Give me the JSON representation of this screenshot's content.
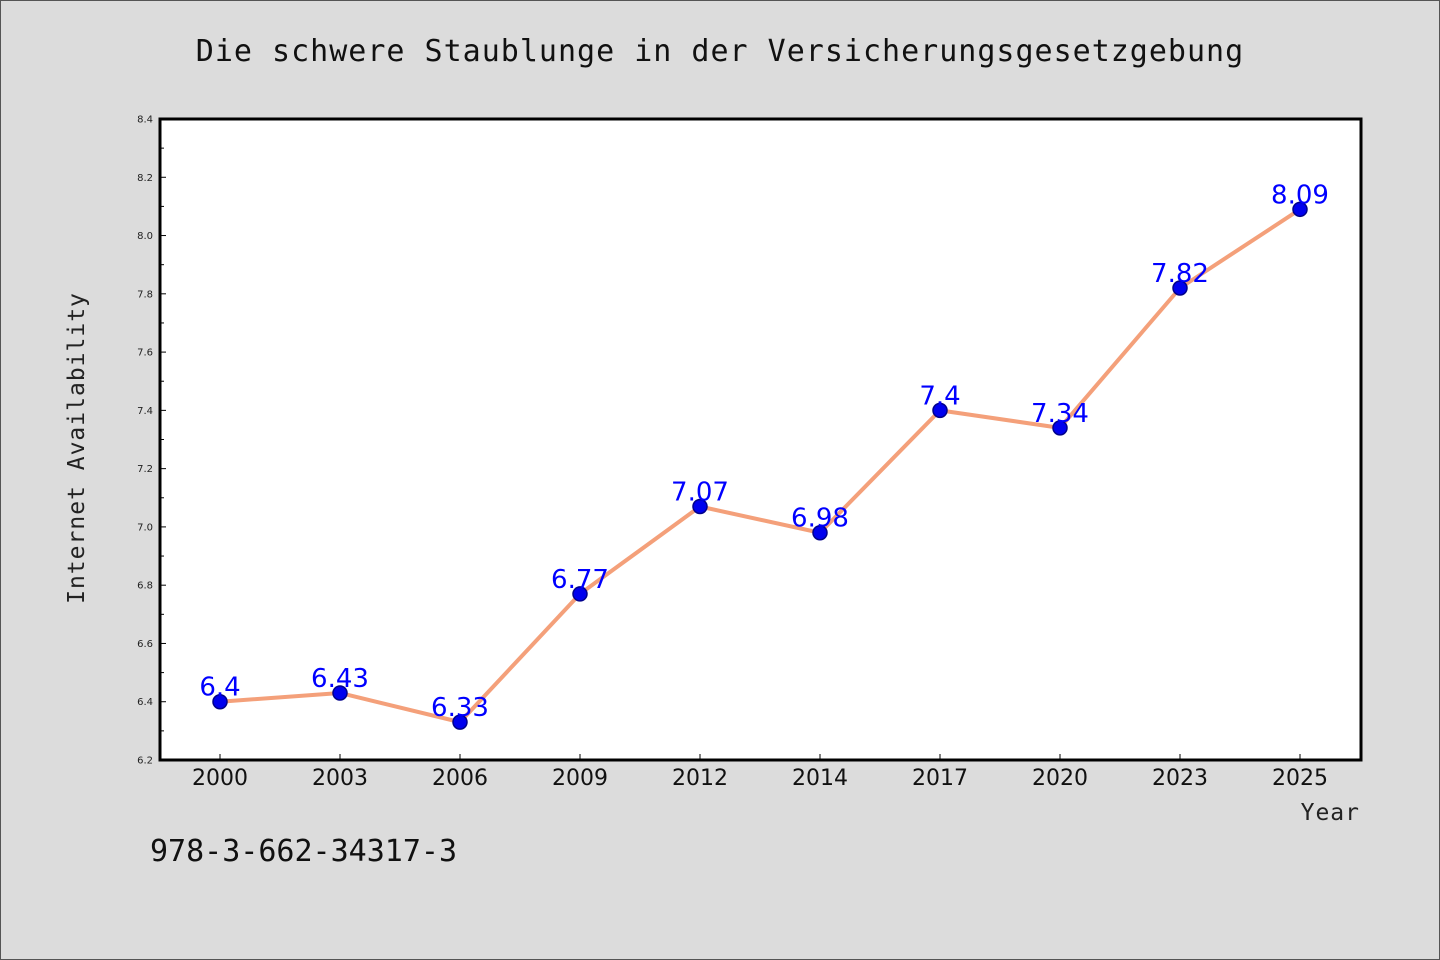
{
  "caption": "978-3-662-34317-3",
  "colors": {
    "background": "#dcdcdc",
    "plot_background": "#ffffff",
    "line": "#f4a07a",
    "marker": "#0000ee",
    "marker_edge": "#00008b",
    "data_label": "#0000ff"
  },
  "chart_data": {
    "type": "line",
    "title": "Die schwere Staublunge in der Versicherungsgesetzgebung",
    "xlabel": "Year",
    "ylabel": "Internet Availability",
    "categories": [
      "2000",
      "2003",
      "2006",
      "2009",
      "2012",
      "2014",
      "2017",
      "2020",
      "2023",
      "2025"
    ],
    "series": [
      {
        "values": [
          6.4,
          6.43,
          6.33,
          6.77,
          7.07,
          6.98,
          7.4,
          7.34,
          7.82,
          8.09
        ],
        "labels": [
          "6.4",
          "6.43",
          "6.33",
          "6.77",
          "7.07",
          "6.98",
          "7.4",
          "7.34",
          "7.82",
          "8.09"
        ]
      }
    ],
    "ylim": [
      6.2,
      8.4
    ],
    "yticks": [
      "6.2",
      "6.4",
      "6.6",
      "6.8",
      "7.0",
      "7.2",
      "7.4",
      "7.6",
      "7.8",
      "8.0",
      "8.2",
      "8.4"
    ],
    "grid": false,
    "legend": "none"
  }
}
